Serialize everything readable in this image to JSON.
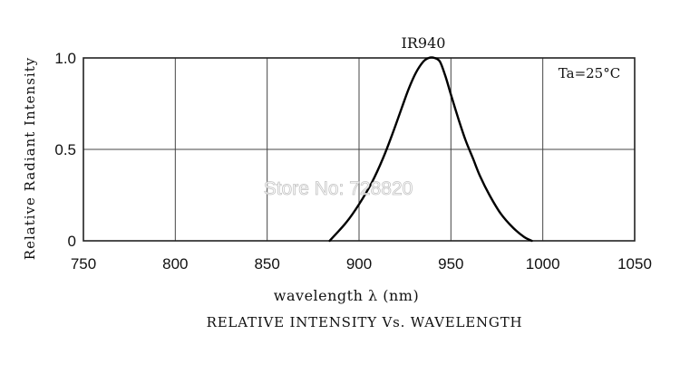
{
  "chart_data": {
    "type": "line",
    "title": "RELATIVE INTENSITY Vs. WAVELENGTH",
    "xlabel": "wavelength λ (nm)",
    "ylabel": "Relative Radiant Intensity",
    "xlim": [
      750,
      1050
    ],
    "ylim": [
      0,
      1.0
    ],
    "x_ticks": [
      "750",
      "800",
      "850",
      "900",
      "950",
      "1000",
      "1050"
    ],
    "y_ticks": [
      "0",
      "0.5",
      "1.0"
    ],
    "grid": true,
    "annotation": "Ta=25°C",
    "series": [
      {
        "name": "IR940",
        "x": [
          884,
          893,
          900,
          907,
          913,
          918,
          923,
          927,
          931,
          935,
          938,
          941,
          944,
          947,
          950,
          954,
          958,
          962,
          966,
          971,
          977,
          984,
          990,
          994
        ],
        "y": [
          0.0,
          0.1,
          0.2,
          0.32,
          0.45,
          0.58,
          0.72,
          0.83,
          0.92,
          0.98,
          1.0,
          1.0,
          0.98,
          0.9,
          0.8,
          0.67,
          0.55,
          0.45,
          0.35,
          0.25,
          0.15,
          0.07,
          0.02,
          0.0
        ]
      }
    ]
  },
  "watermark": "Store No: 728820"
}
